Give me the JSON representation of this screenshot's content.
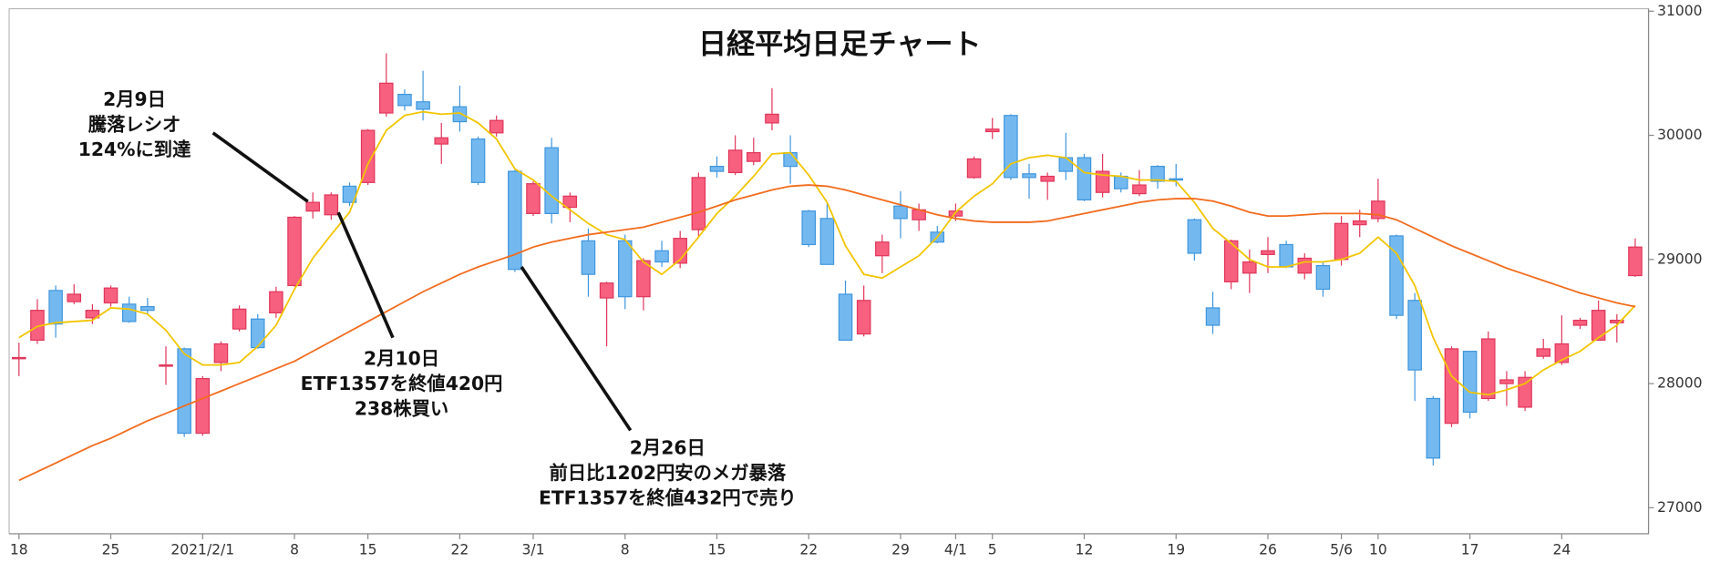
{
  "chart_data": {
    "type": "candlestick",
    "title": "日経平均日足チャート",
    "categories": [
      "18",
      null,
      null,
      null,
      null,
      "25",
      null,
      null,
      null,
      null,
      "2021/2/1",
      null,
      null,
      null,
      null,
      "8",
      null,
      null,
      null,
      "15",
      null,
      null,
      null,
      null,
      "22",
      null,
      null,
      null,
      "3/1",
      null,
      null,
      null,
      null,
      "8",
      null,
      null,
      null,
      null,
      "15",
      null,
      null,
      null,
      null,
      "22",
      null,
      null,
      null,
      null,
      "29",
      null,
      null,
      "4/1",
      null,
      "5",
      null,
      null,
      null,
      null,
      "12",
      null,
      null,
      null,
      null,
      "19",
      null,
      null,
      null,
      null,
      "26",
      null,
      null,
      null,
      "5/6",
      null,
      "10",
      null,
      null,
      null,
      null,
      "17",
      null,
      null,
      null,
      null,
      "24",
      null,
      null,
      null,
      null
    ],
    "ohlc": {
      "open": [
        28200,
        28350,
        28750,
        28660,
        28530,
        28650,
        28640,
        28620,
        28140,
        28280,
        27600,
        28170,
        28440,
        28520,
        28570,
        28790,
        29390,
        29360,
        29590,
        29620,
        30180,
        30330,
        30270,
        29930,
        30230,
        29970,
        30020,
        29710,
        29370,
        29900,
        29420,
        29150,
        28690,
        29150,
        28700,
        29070,
        28970,
        29240,
        29750,
        29700,
        29790,
        30100,
        29860,
        29390,
        29330,
        28720,
        28400,
        29030,
        29430,
        29320,
        29220,
        29350,
        29660,
        30030,
        30160,
        29690,
        29630,
        29820,
        29820,
        29540,
        29670,
        29530,
        29750,
        29650,
        29320,
        28610,
        28820,
        28890,
        29040,
        29120,
        28890,
        28950,
        29000,
        29280,
        29330,
        29190,
        28670,
        27880,
        27680,
        28260,
        27880,
        28000,
        27810,
        28220,
        28170,
        28470,
        28350,
        28490,
        28870
      ],
      "high": [
        28330,
        28680,
        28790,
        28800,
        28640,
        28790,
        28700,
        28690,
        28300,
        28290,
        28060,
        28340,
        28630,
        28560,
        28780,
        29350,
        29540,
        29540,
        29620,
        30050,
        30660,
        30370,
        30520,
        30100,
        30400,
        29990,
        30160,
        29720,
        29630,
        29980,
        29540,
        29250,
        28820,
        29200,
        29010,
        29150,
        29230,
        29700,
        29830,
        30000,
        29980,
        30380,
        30000,
        29400,
        29450,
        28830,
        28790,
        29200,
        29550,
        29450,
        29270,
        29450,
        29830,
        30140,
        30170,
        29770,
        29700,
        30020,
        29850,
        29850,
        29700,
        29720,
        29760,
        29770,
        29330,
        28740,
        29160,
        29080,
        29180,
        29150,
        29050,
        28980,
        29350,
        29400,
        29650,
        29200,
        28730,
        27900,
        28300,
        28260,
        28420,
        28100,
        28100,
        28360,
        28550,
        28530,
        28670,
        28560,
        29170
      ],
      "low": [
        28060,
        28320,
        28370,
        28640,
        28480,
        28620,
        28490,
        28560,
        27990,
        27570,
        27580,
        28100,
        28420,
        28280,
        28530,
        28780,
        29330,
        29320,
        29430,
        29600,
        30150,
        30200,
        30120,
        29770,
        30030,
        29600,
        29990,
        28900,
        29350,
        29290,
        29300,
        28700,
        28300,
        28600,
        28590,
        28940,
        28930,
        29180,
        29660,
        29680,
        29760,
        30040,
        29610,
        29100,
        28960,
        28350,
        28380,
        28890,
        29170,
        29230,
        29130,
        29310,
        29650,
        29970,
        29640,
        29490,
        29480,
        29640,
        29470,
        29500,
        29540,
        29510,
        29570,
        29590,
        28990,
        28400,
        28760,
        28730,
        28890,
        28930,
        28840,
        28700,
        28950,
        29180,
        29300,
        28520,
        27860,
        27340,
        27650,
        27720,
        27860,
        27820,
        27780,
        28200,
        28150,
        28440,
        28350,
        28330,
        28860
      ],
      "close": [
        28210,
        28590,
        28480,
        28720,
        28590,
        28770,
        28500,
        28590,
        28150,
        27600,
        28040,
        28320,
        28600,
        28290,
        28740,
        29340,
        29460,
        29520,
        29460,
        30040,
        30420,
        30240,
        30210,
        29980,
        30110,
        29620,
        30120,
        28920,
        29610,
        29370,
        29510,
        28880,
        28810,
        28700,
        28990,
        28980,
        29170,
        29660,
        29710,
        29880,
        29860,
        30170,
        29750,
        29120,
        28960,
        28350,
        28670,
        29140,
        29330,
        29400,
        29140,
        29390,
        29810,
        30050,
        29660,
        29660,
        29670,
        29710,
        29480,
        29710,
        29570,
        29600,
        29630,
        29640,
        29050,
        28470,
        29150,
        28980,
        29070,
        28940,
        29010,
        28760,
        29290,
        29310,
        29470,
        28550,
        28110,
        27400,
        28280,
        27770,
        28360,
        28030,
        28050,
        28280,
        28320,
        28510,
        28590,
        28510,
        29100
      ]
    },
    "up_color": "#f7607f",
    "down_color": "#73b9f0",
    "moving_averages": [
      {
        "color": "#f2c500",
        "values": [
          28370,
          28460,
          28490,
          28500,
          28510,
          28610,
          28600,
          28560,
          28430,
          28240,
          28150,
          28150,
          28170,
          28300,
          28470,
          28760,
          29010,
          29200,
          29380,
          29770,
          30040,
          30160,
          30190,
          30170,
          30180,
          30100,
          29970,
          29730,
          29640,
          29510,
          29400,
          29290,
          29200,
          29160,
          28980,
          28880,
          29000,
          29180,
          29370,
          29510,
          29670,
          29850,
          29860,
          29680,
          29460,
          29110,
          28880,
          28850,
          28940,
          29030,
          29180,
          29380,
          29510,
          29610,
          29770,
          29820,
          29840,
          29820,
          29700,
          29680,
          29670,
          29640,
          29640,
          29630,
          29460,
          29250,
          29130,
          29000,
          28940,
          28940,
          28980,
          28980,
          29000,
          29050,
          29180,
          29050,
          28790,
          28370,
          28060,
          27930,
          27910,
          27950,
          28000,
          28110,
          28190,
          28260,
          28370,
          28470,
          28630
        ]
      },
      {
        "color": "#f26b1d",
        "values": [
          27220,
          27290,
          27360,
          27430,
          27500,
          27560,
          27630,
          27700,
          27760,
          27820,
          27880,
          27940,
          28000,
          28060,
          28120,
          28180,
          28260,
          28340,
          28420,
          28500,
          28580,
          28660,
          28740,
          28810,
          28880,
          28940,
          28990,
          29040,
          29100,
          29140,
          29170,
          29200,
          29220,
          29240,
          29260,
          29300,
          29340,
          29380,
          29430,
          29480,
          29520,
          29560,
          29590,
          29600,
          29590,
          29560,
          29520,
          29480,
          29440,
          29400,
          29360,
          29330,
          29310,
          29300,
          29300,
          29300,
          29310,
          29340,
          29370,
          29400,
          29430,
          29460,
          29480,
          29490,
          29490,
          29470,
          29430,
          29380,
          29350,
          29350,
          29360,
          29370,
          29370,
          29370,
          29360,
          29320,
          29250,
          29180,
          29110,
          29050,
          28990,
          28930,
          28880,
          28830,
          28780,
          28730,
          28690,
          28650,
          28620
        ]
      }
    ],
    "ylim": [
      26790,
      31020
    ],
    "yticks": [
      27000,
      28000,
      29000,
      30000,
      31000
    ],
    "annotations": [
      {
        "lines": [
          "2月9日",
          "騰落レシオ",
          "124%に到達"
        ]
      },
      {
        "lines": [
          "2月10日",
          "ETF1357を終値420円",
          "238株買い"
        ]
      },
      {
        "lines": [
          "2月26日",
          "前日比1202円安のメガ暴落",
          "ETF1357を終値432円で売り"
        ]
      }
    ]
  }
}
